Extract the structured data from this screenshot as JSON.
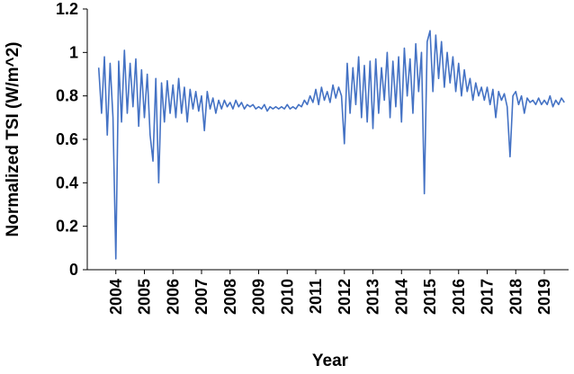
{
  "chart_data": {
    "type": "line",
    "xlabel": "Year",
    "ylabel": "Normalized TSI (W/m^2)",
    "color": "#4472c4",
    "xlim": [
      2003,
      2019.85
    ],
    "xticks": [
      2004,
      2005,
      2006,
      2007,
      2008,
      2009,
      2010,
      2011,
      2012,
      2013,
      2014,
      2015,
      2016,
      2017,
      2018,
      2019
    ],
    "ylim": [
      0,
      1.2
    ],
    "yticks": [
      0,
      0.2,
      0.4,
      0.6,
      0.8,
      1,
      1.2
    ],
    "x": [
      2003.4,
      2003.5,
      2003.6,
      2003.7,
      2003.8,
      2003.9,
      2004.0,
      2004.1,
      2004.2,
      2004.3,
      2004.4,
      2004.5,
      2004.6,
      2004.7,
      2004.8,
      2004.9,
      2005.0,
      2005.1,
      2005.2,
      2005.3,
      2005.4,
      2005.5,
      2005.6,
      2005.7,
      2005.8,
      2005.9,
      2006.0,
      2006.1,
      2006.2,
      2006.3,
      2006.4,
      2006.5,
      2006.6,
      2006.7,
      2006.8,
      2006.9,
      2007.0,
      2007.1,
      2007.2,
      2007.3,
      2007.4,
      2007.5,
      2007.6,
      2007.7,
      2007.8,
      2007.9,
      2008.0,
      2008.1,
      2008.2,
      2008.3,
      2008.4,
      2008.5,
      2008.6,
      2008.7,
      2008.8,
      2008.9,
      2009.0,
      2009.1,
      2009.2,
      2009.3,
      2009.4,
      2009.5,
      2009.6,
      2009.7,
      2009.8,
      2009.9,
      2010.0,
      2010.1,
      2010.2,
      2010.3,
      2010.4,
      2010.5,
      2010.6,
      2010.7,
      2010.8,
      2010.9,
      2011.0,
      2011.1,
      2011.2,
      2011.3,
      2011.4,
      2011.5,
      2011.6,
      2011.7,
      2011.8,
      2011.9,
      2012.0,
      2012.1,
      2012.2,
      2012.3,
      2012.4,
      2012.5,
      2012.6,
      2012.7,
      2012.8,
      2012.9,
      2013.0,
      2013.1,
      2013.2,
      2013.3,
      2013.4,
      2013.5,
      2013.6,
      2013.7,
      2013.8,
      2013.9,
      2014.0,
      2014.1,
      2014.2,
      2014.3,
      2014.4,
      2014.5,
      2014.6,
      2014.7,
      2014.8,
      2014.9,
      2015.0,
      2015.1,
      2015.2,
      2015.3,
      2015.4,
      2015.5,
      2015.6,
      2015.7,
      2015.8,
      2015.9,
      2016.0,
      2016.1,
      2016.2,
      2016.3,
      2016.4,
      2016.5,
      2016.6,
      2016.7,
      2016.8,
      2016.9,
      2017.0,
      2017.1,
      2017.2,
      2017.3,
      2017.4,
      2017.5,
      2017.6,
      2017.7,
      2017.8,
      2017.9,
      2018.0,
      2018.1,
      2018.2,
      2018.3,
      2018.4,
      2018.5,
      2018.6,
      2018.7,
      2018.8,
      2018.9,
      2019.0,
      2019.1,
      2019.2,
      2019.3,
      2019.4,
      2019.5,
      2019.6,
      2019.7
    ],
    "values": [
      0.93,
      0.72,
      0.98,
      0.62,
      0.95,
      0.7,
      0.05,
      0.96,
      0.68,
      1.01,
      0.72,
      0.95,
      0.75,
      0.97,
      0.66,
      0.92,
      0.7,
      0.9,
      0.62,
      0.5,
      0.88,
      0.4,
      0.86,
      0.68,
      0.87,
      0.72,
      0.85,
      0.7,
      0.88,
      0.72,
      0.84,
      0.68,
      0.83,
      0.74,
      0.82,
      0.73,
      0.8,
      0.64,
      0.82,
      0.74,
      0.79,
      0.72,
      0.78,
      0.74,
      0.78,
      0.75,
      0.77,
      0.74,
      0.78,
      0.75,
      0.77,
      0.74,
      0.76,
      0.75,
      0.76,
      0.74,
      0.75,
      0.74,
      0.76,
      0.73,
      0.75,
      0.74,
      0.75,
      0.74,
      0.75,
      0.74,
      0.76,
      0.74,
      0.75,
      0.74,
      0.76,
      0.75,
      0.78,
      0.76,
      0.8,
      0.77,
      0.83,
      0.76,
      0.84,
      0.78,
      0.82,
      0.77,
      0.85,
      0.79,
      0.84,
      0.8,
      0.58,
      0.95,
      0.72,
      0.93,
      0.76,
      0.98,
      0.7,
      0.94,
      0.68,
      0.96,
      0.65,
      0.97,
      0.72,
      0.93,
      0.78,
      1.0,
      0.7,
      0.96,
      0.75,
      0.98,
      0.68,
      1.02,
      0.8,
      0.97,
      0.72,
      1.04,
      0.82,
      1.0,
      0.35,
      1.05,
      1.1,
      0.82,
      1.08,
      0.88,
      1.05,
      0.84,
      1.0,
      0.86,
      0.98,
      0.82,
      0.95,
      0.8,
      0.92,
      0.82,
      0.88,
      0.78,
      0.86,
      0.8,
      0.84,
      0.78,
      0.84,
      0.76,
      0.83,
      0.7,
      0.82,
      0.78,
      0.81,
      0.75,
      0.52,
      0.8,
      0.82,
      0.76,
      0.8,
      0.72,
      0.79,
      0.77,
      0.78,
      0.76,
      0.79,
      0.76,
      0.78,
      0.76,
      0.8,
      0.75,
      0.78,
      0.76,
      0.79,
      0.77
    ]
  }
}
